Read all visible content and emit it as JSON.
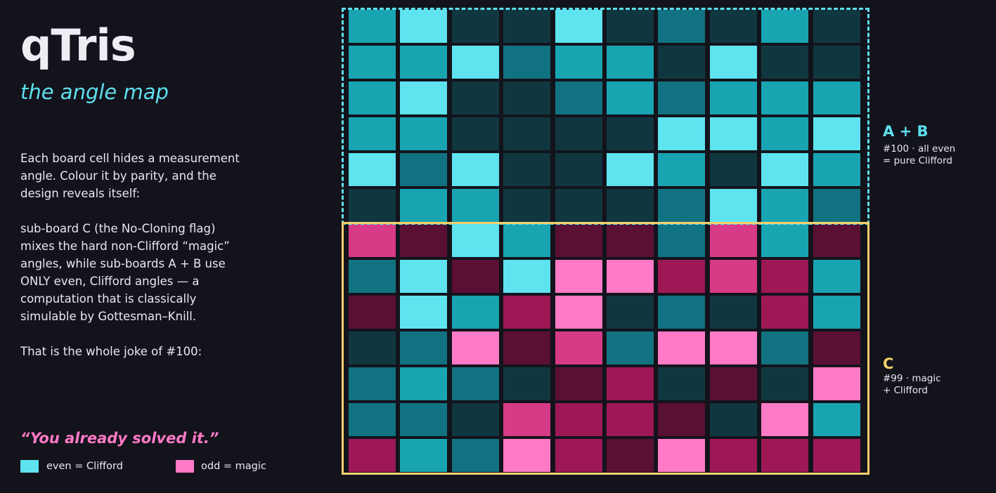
{
  "header": {
    "title": "qTris",
    "subtitle": "the angle map"
  },
  "description": {
    "p1": [
      "Each board cell hides a measurement",
      "angle. Colour it by parity, and the",
      "design reveals itself:"
    ],
    "p2": [
      "sub-board C (the No-Cloning flag)",
      "mixes the hard non-Clifford “magic”",
      "angles, while sub-boards A + B use",
      "ONLY even, Clifford angles — a",
      "computation that is classically",
      "simulable by Gottesman–Knill."
    ],
    "p3": [
      "That is the whole joke of #100:"
    ]
  },
  "quote": "“You already solved it.”",
  "legend": {
    "even_label": "even = Clifford",
    "odd_label": "odd = magic",
    "even_color": "#5ee3ef",
    "odd_color": "#ff7ac6"
  },
  "regions": {
    "ab": {
      "title": "A + B",
      "note_line1": "#100 · all even",
      "note_line2": "= pure Clifford",
      "color": "#5ee0ee"
    },
    "c": {
      "title": "C",
      "note_line1": "#99 · magic",
      "note_line2": "+ Clifford",
      "color": "#f5cf6a"
    }
  },
  "palette": {
    "e1": "#5ee3ef",
    "e2": "#19a4b2",
    "e3": "#117381",
    "e4": "#10373f",
    "m1": "#ff7ac6",
    "m2": "#d73a86",
    "m3": "#9e1856",
    "m4": "#5a1033"
  },
  "grid": [
    [
      "e2",
      "e1",
      "e4",
      "e4",
      "e1",
      "e4",
      "e3",
      "e4",
      "e2",
      "e4"
    ],
    [
      "e2",
      "e2",
      "e1",
      "e3",
      "e2",
      "e2",
      "e4",
      "e1",
      "e4",
      "e4"
    ],
    [
      "e2",
      "e1",
      "e4",
      "e4",
      "e3",
      "e2",
      "e3",
      "e2",
      "e2",
      "e2"
    ],
    [
      "e2",
      "e2",
      "e4",
      "e4",
      "e4",
      "e4",
      "e1",
      "e1",
      "e2",
      "e1"
    ],
    [
      "e1",
      "e3",
      "e1",
      "e4",
      "e4",
      "e1",
      "e2",
      "e4",
      "e1",
      "e2"
    ],
    [
      "e4",
      "e2",
      "e2",
      "e4",
      "e4",
      "e4",
      "e3",
      "e1",
      "e2",
      "e3"
    ],
    [
      "m2",
      "m4",
      "e1",
      "e2",
      "m4",
      "m4",
      "e3",
      "m2",
      "e2",
      "m4"
    ],
    [
      "e3",
      "e1",
      "m4",
      "e1",
      "m1",
      "m1",
      "m3",
      "m2",
      "m3",
      "e2"
    ],
    [
      "m4",
      "e1",
      "e2",
      "m3",
      "m1",
      "e4",
      "e3",
      "e4",
      "m3",
      "e2"
    ],
    [
      "e4",
      "e3",
      "m1",
      "m4",
      "m2",
      "e3",
      "m1",
      "m1",
      "e3",
      "m4"
    ],
    [
      "e3",
      "e2",
      "e3",
      "e4",
      "m4",
      "m3",
      "e4",
      "m4",
      "e4",
      "m1"
    ],
    [
      "e3",
      "e3",
      "e4",
      "m2",
      "m3",
      "m3",
      "m4",
      "e4",
      "m1",
      "e2"
    ],
    [
      "m3",
      "e2",
      "e3",
      "m1",
      "m3",
      "m4",
      "m1",
      "m3",
      "m3",
      "m3"
    ]
  ]
}
